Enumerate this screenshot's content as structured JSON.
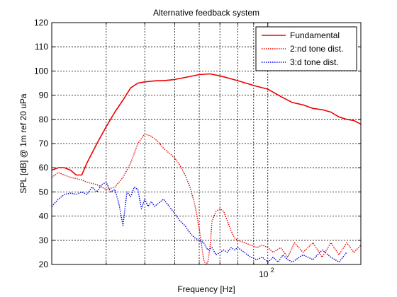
{
  "chart_data": {
    "type": "line",
    "title": "Alternative feedback system",
    "xlabel": "Frequency [Hz]",
    "ylabel": "SPL [dB] @ 1m ref 20 uPa",
    "x_scale": "log",
    "xlim": [
      20,
      200
    ],
    "ylim": [
      20,
      120
    ],
    "yticks": [
      20,
      30,
      40,
      50,
      60,
      70,
      80,
      90,
      100,
      110,
      120
    ],
    "xtick_labels": [
      {
        "value": 100,
        "label": "10",
        "exponent": "2"
      }
    ],
    "x_minor_ticks": [
      30,
      40,
      50,
      60,
      70,
      80,
      90,
      100,
      200
    ],
    "grid": true,
    "legend_position": "top-right",
    "series": [
      {
        "name": "Fundamental",
        "color": "#ee0000",
        "style": "solid",
        "x": [
          20,
          21,
          22,
          23,
          24,
          25,
          26,
          28,
          30,
          32,
          34,
          36,
          38,
          40,
          42,
          44,
          46,
          50,
          55,
          60,
          65,
          70,
          80,
          90,
          100,
          110,
          120,
          130,
          140,
          150,
          160,
          170,
          180,
          190,
          200
        ],
        "y": [
          59,
          60,
          60,
          59,
          57,
          57,
          62,
          70,
          77,
          83,
          88,
          93,
          95,
          95.5,
          95.8,
          96,
          96,
          96.5,
          97.5,
          98.5,
          98.8,
          98,
          96,
          94,
          92.5,
          89.5,
          87,
          86,
          84.5,
          84,
          83,
          81,
          80,
          79.5,
          78
        ]
      },
      {
        "name": "2:nd tone dist.",
        "color": "#ee0000",
        "style": "dotted",
        "x": [
          20,
          21,
          22,
          23,
          24,
          25,
          26,
          28,
          30,
          32,
          34,
          36,
          38,
          40,
          42,
          44,
          46,
          48,
          50,
          52,
          54,
          56,
          58,
          60,
          62,
          63,
          64,
          65,
          66,
          68,
          70,
          72,
          74,
          76,
          78,
          80,
          84,
          88,
          92,
          96,
          100,
          104,
          110,
          116,
          122,
          130,
          140,
          150,
          160,
          170,
          180,
          190,
          200
        ],
        "y": [
          56,
          58,
          57,
          56,
          55.5,
          55,
          54,
          53,
          51,
          52,
          56,
          62,
          70,
          74,
          73,
          71,
          68,
          66,
          64,
          61,
          57,
          52,
          45,
          35,
          22,
          20,
          21,
          27,
          38,
          42,
          43,
          42,
          38,
          34,
          31,
          30,
          29,
          28,
          27,
          28,
          27,
          25,
          27,
          23,
          29,
          25,
          29,
          23,
          29,
          24,
          29,
          25,
          28
        ]
      },
      {
        "name": "3:d tone dist.",
        "color": "#0000dd",
        "style": "dotted",
        "x": [
          20,
          21,
          22,
          23,
          24,
          25,
          26,
          27,
          28,
          29,
          30,
          31,
          32,
          33,
          34,
          35,
          36,
          37,
          38,
          39,
          40,
          41,
          42,
          43,
          44,
          46,
          48,
          50,
          52,
          54,
          56,
          58,
          60,
          62,
          64,
          66,
          68,
          70,
          72,
          74,
          76,
          78,
          80,
          84,
          88,
          92,
          96,
          100,
          104,
          108,
          112,
          116,
          120,
          130,
          140,
          150,
          160,
          170,
          180
        ],
        "y": [
          44,
          47,
          49,
          49.5,
          49,
          50,
          49,
          52,
          50,
          53,
          54,
          50,
          51,
          45,
          36,
          50,
          48,
          52,
          51,
          43,
          47,
          44,
          46,
          44,
          45,
          47,
          44,
          41,
          38,
          36,
          33,
          31,
          30,
          29,
          26,
          27,
          24,
          25,
          26,
          25,
          27,
          26,
          27,
          25,
          23,
          22,
          23,
          21,
          23,
          21,
          24,
          22,
          21,
          24,
          22,
          26,
          23,
          21,
          25
        ]
      }
    ]
  }
}
